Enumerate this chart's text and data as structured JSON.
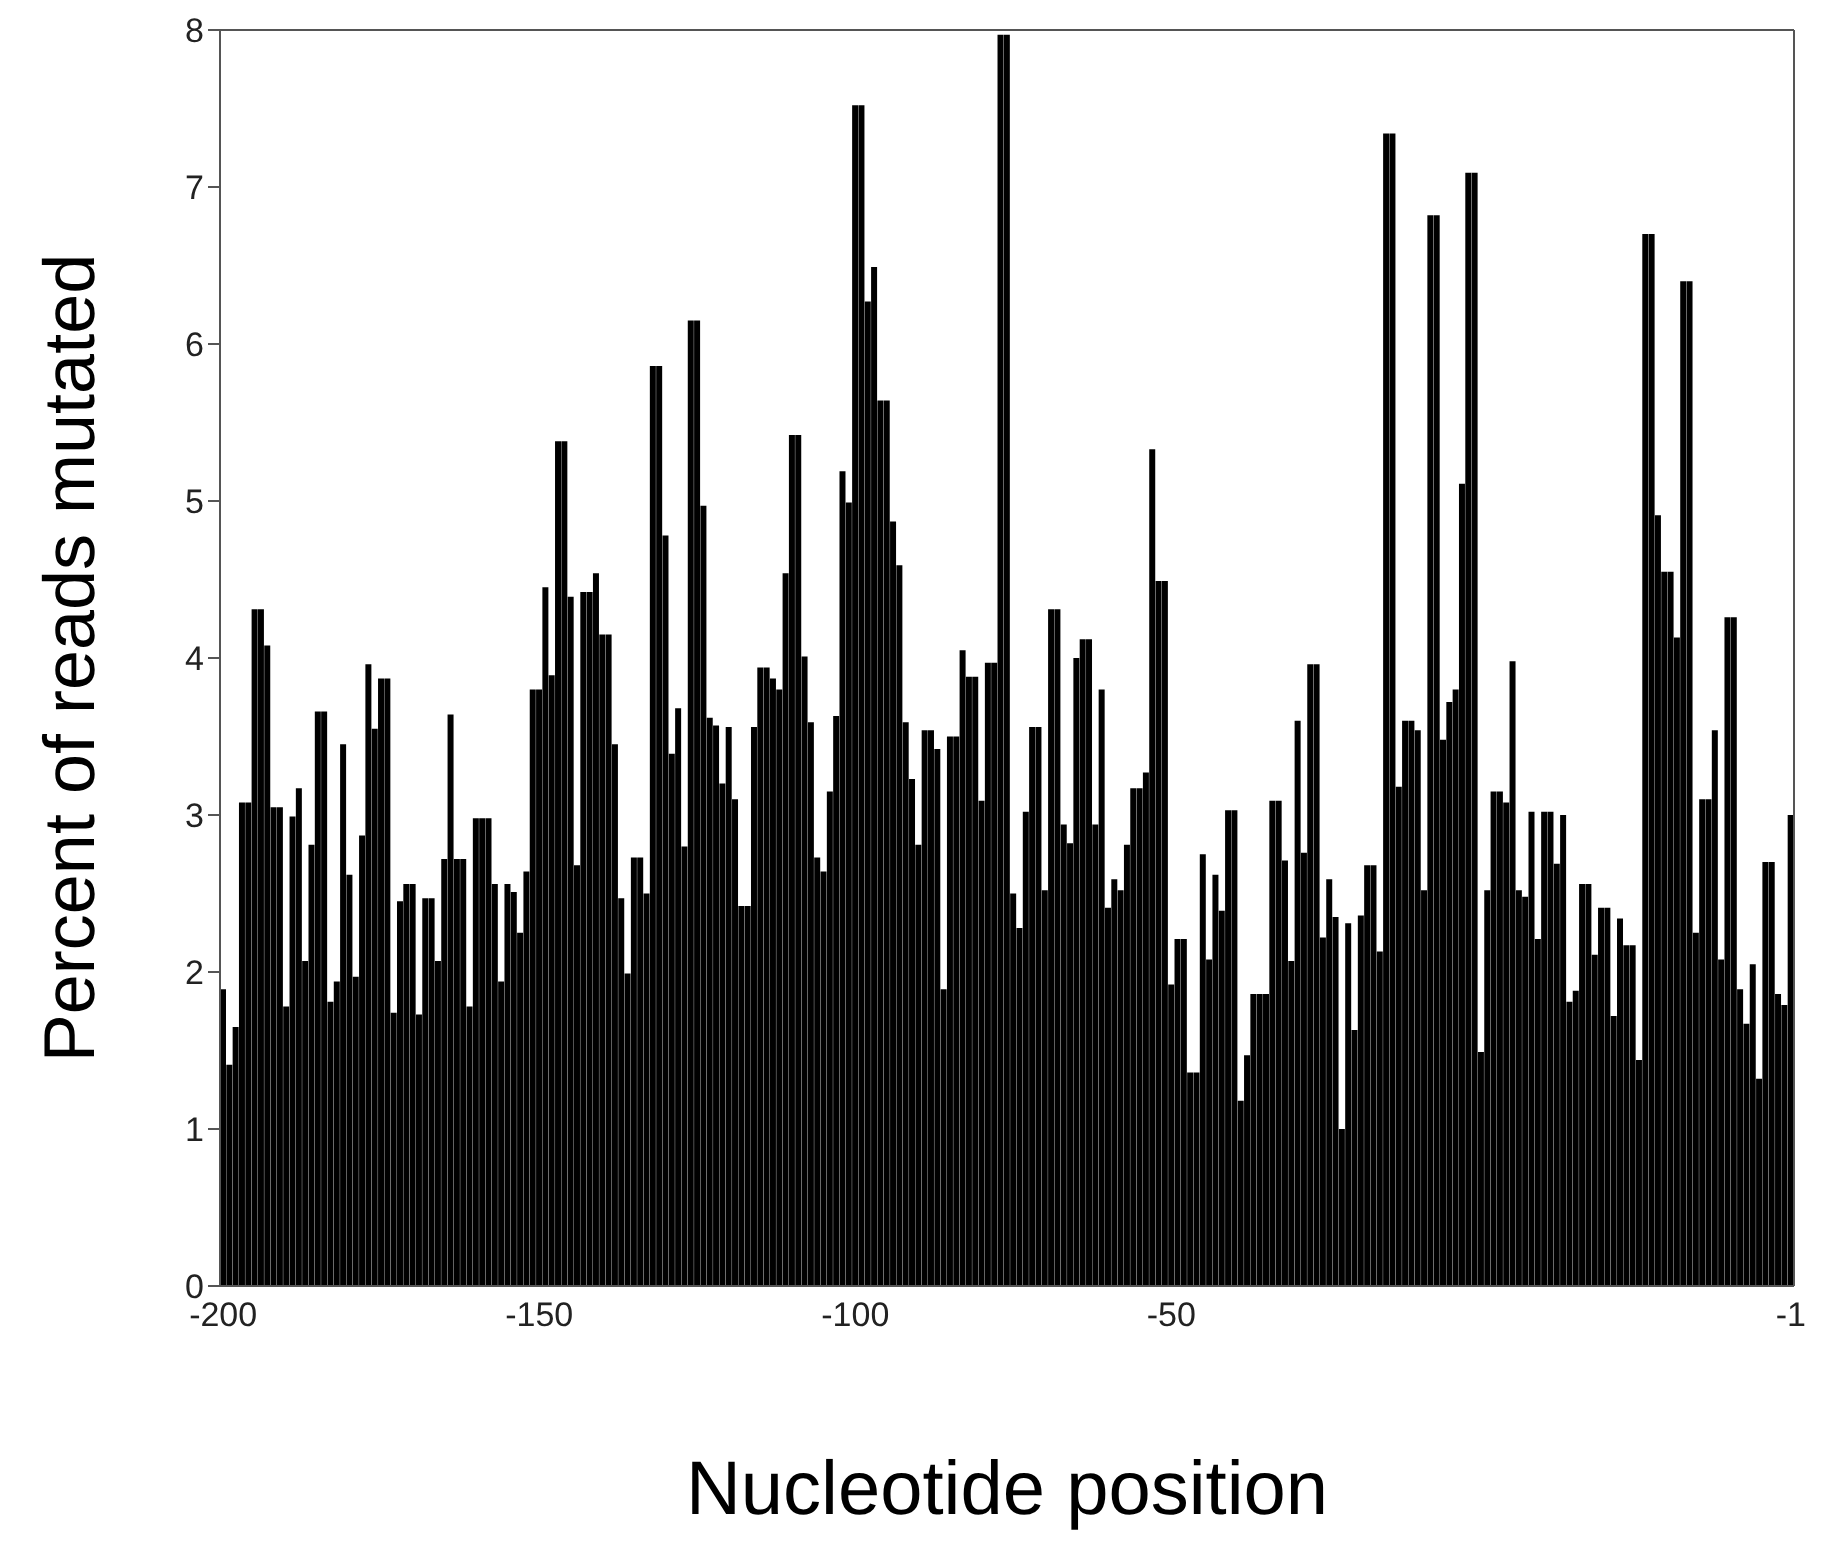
{
  "chart_data": {
    "type": "bar",
    "xlabel": "Nucleotide position",
    "ylabel": "Percent of reads mutated",
    "color": "#000000",
    "ylim": [
      0,
      8
    ],
    "yticks": [
      0,
      1,
      2,
      3,
      4,
      5,
      6,
      7,
      8
    ],
    "categories": [
      "-200",
      null,
      null,
      null,
      null,
      null,
      null,
      null,
      null,
      null,
      null,
      null,
      null,
      null,
      null,
      null,
      null,
      null,
      null,
      null,
      null,
      null,
      null,
      null,
      null,
      null,
      null,
      null,
      null,
      null,
      null,
      null,
      null,
      null,
      null,
      null,
      null,
      null,
      null,
      null,
      null,
      null,
      null,
      null,
      null,
      null,
      null,
      null,
      null,
      null,
      "-150",
      null,
      null,
      null,
      null,
      null,
      null,
      null,
      null,
      null,
      null,
      null,
      null,
      null,
      null,
      null,
      null,
      null,
      null,
      null,
      null,
      null,
      null,
      null,
      null,
      null,
      null,
      null,
      null,
      null,
      null,
      null,
      null,
      null,
      null,
      null,
      null,
      null,
      null,
      null,
      null,
      null,
      null,
      null,
      null,
      null,
      null,
      null,
      null,
      null,
      "-100",
      null,
      null,
      null,
      null,
      null,
      null,
      null,
      null,
      null,
      null,
      null,
      null,
      null,
      null,
      null,
      null,
      null,
      null,
      null,
      null,
      null,
      null,
      null,
      null,
      null,
      null,
      null,
      null,
      null,
      null,
      null,
      null,
      null,
      null,
      null,
      null,
      null,
      null,
      null,
      null,
      null,
      null,
      null,
      null,
      null,
      null,
      null,
      null,
      null,
      "-50",
      null,
      null,
      null,
      null,
      null,
      null,
      null,
      null,
      null,
      null,
      null,
      null,
      null,
      null,
      null,
      null,
      null,
      null,
      null,
      null,
      null,
      null,
      null,
      null,
      null,
      null,
      null,
      null,
      null,
      null,
      null,
      null,
      null,
      null,
      null,
      null,
      null,
      null,
      null,
      null,
      null,
      null,
      null,
      null,
      null,
      null,
      null,
      null,
      null,
      null,
      null,
      null,
      null,
      null,
      null,
      null,
      null,
      null,
      null,
      null,
      null,
      null,
      null,
      null,
      null,
      null,
      null,
      null,
      null,
      null,
      null,
      null,
      null,
      null,
      null,
      null,
      null,
      null,
      null,
      null,
      null,
      null,
      null,
      null,
      null,
      null,
      null,
      null,
      null,
      null,
      null,
      null,
      null,
      null,
      null,
      null,
      null,
      "-1"
    ],
    "values": [
      1.89,
      1.41,
      1.65,
      3.08,
      3.08,
      4.31,
      4.31,
      4.08,
      3.05,
      3.05,
      1.78,
      2.99,
      3.17,
      2.07,
      2.81,
      3.66,
      3.66,
      1.81,
      1.94,
      3.45,
      2.62,
      1.97,
      2.87,
      3.96,
      3.55,
      3.87,
      3.87,
      1.74,
      2.45,
      2.56,
      2.56,
      1.73,
      2.47,
      2.47,
      2.07,
      2.72,
      3.64,
      2.72,
      2.72,
      1.78,
      2.98,
      2.98,
      2.98,
      2.56,
      1.94,
      2.56,
      2.51,
      2.25,
      2.64,
      3.8,
      3.8,
      4.45,
      3.89,
      5.38,
      5.38,
      4.39,
      2.68,
      4.42,
      4.42,
      4.54,
      4.15,
      4.15,
      3.45,
      2.47,
      1.99,
      2.73,
      2.73,
      2.5,
      5.86,
      5.86,
      4.78,
      3.39,
      3.68,
      2.8,
      6.15,
      6.15,
      4.97,
      3.62,
      3.57,
      3.2,
      3.56,
      3.1,
      2.42,
      2.42,
      3.56,
      3.94,
      3.94,
      3.87,
      3.8,
      4.54,
      5.42,
      5.42,
      4.01,
      3.59,
      2.73,
      2.64,
      3.15,
      3.63,
      5.19,
      4.99,
      7.52,
      7.52,
      6.27,
      6.49,
      5.64,
      5.64,
      4.87,
      4.59,
      3.59,
      3.23,
      2.81,
      3.54,
      3.54,
      3.42,
      1.89,
      3.5,
      3.5,
      4.05,
      3.88,
      3.88,
      3.09,
      3.97,
      3.97,
      7.97,
      7.97,
      2.5,
      2.28,
      3.02,
      3.56,
      3.56,
      2.52,
      4.31,
      4.31,
      2.94,
      2.82,
      4.0,
      4.12,
      4.12,
      2.94,
      3.8,
      2.41,
      2.59,
      2.52,
      2.81,
      3.17,
      3.17,
      3.27,
      5.33,
      4.49,
      4.49,
      1.92,
      2.21,
      2.21,
      1.36,
      1.36,
      2.75,
      2.08,
      2.62,
      2.39,
      3.03,
      3.03,
      1.18,
      1.47,
      1.86,
      1.86,
      1.86,
      3.09,
      3.09,
      2.71,
      2.07,
      3.6,
      2.76,
      3.96,
      3.96,
      2.22,
      2.59,
      2.35,
      1.0,
      2.31,
      1.63,
      2.36,
      2.68,
      2.68,
      2.13,
      7.34,
      7.34,
      3.18,
      3.6,
      3.6,
      3.54,
      2.52,
      6.82,
      6.82,
      3.48,
      3.72,
      3.8,
      5.11,
      7.09,
      7.09,
      1.49,
      2.52,
      3.15,
      3.15,
      3.08,
      3.98,
      2.52,
      2.48,
      3.02,
      2.21,
      3.02,
      3.02,
      2.69,
      3.0,
      1.81,
      1.88,
      2.56,
      2.56,
      2.11,
      2.41,
      2.41,
      1.72,
      2.34,
      2.17,
      2.17,
      1.44,
      6.7,
      6.7,
      4.91,
      4.55,
      4.55,
      4.13,
      6.4,
      6.4,
      2.25,
      3.1,
      3.1,
      3.54,
      2.08,
      4.26,
      4.26,
      1.89,
      1.67,
      2.05,
      1.32,
      2.7,
      2.7,
      1.86,
      1.79,
      3.0
    ]
  }
}
